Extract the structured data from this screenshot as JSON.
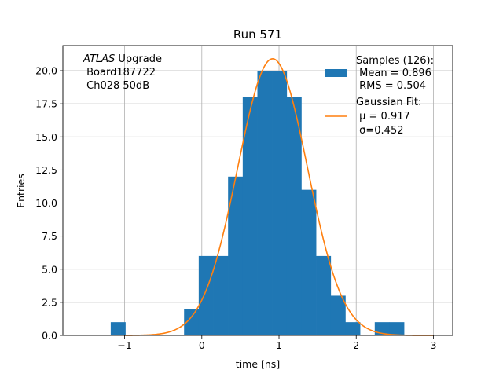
{
  "chart_data": {
    "type": "histogram",
    "title": "Run 571",
    "xlabel": "time [ns]",
    "ylabel": "Entries",
    "xlim": [
      -1.8,
      3.25
    ],
    "ylim": [
      0,
      21.9
    ],
    "grid": true,
    "x_ticks": [
      -1,
      0,
      1,
      2,
      3
    ],
    "x_tick_labels": [
      "−1",
      "0",
      "1",
      "2",
      "3"
    ],
    "y_ticks": [
      0,
      2.5,
      5,
      7.5,
      10,
      12.5,
      15,
      17.5,
      20
    ],
    "y_tick_labels": [
      "0.0",
      "2.5",
      "5.0",
      "7.5",
      "10.0",
      "12.5",
      "15.0",
      "17.5",
      "20.0"
    ],
    "bin_width": 0.19,
    "bins": [
      {
        "x0": -1.18,
        "value": 1
      },
      {
        "x0": -0.99,
        "value": 0
      },
      {
        "x0": -0.8,
        "value": 0
      },
      {
        "x0": -0.61,
        "value": 0
      },
      {
        "x0": -0.42,
        "value": 0
      },
      {
        "x0": -0.23,
        "value": 2
      },
      {
        "x0": -0.04,
        "value": 6
      },
      {
        "x0": 0.15,
        "value": 6
      },
      {
        "x0": 0.34,
        "value": 12
      },
      {
        "x0": 0.53,
        "value": 18
      },
      {
        "x0": 0.72,
        "value": 20
      },
      {
        "x0": 0.91,
        "value": 20
      },
      {
        "x0": 1.1,
        "value": 18
      },
      {
        "x0": 1.29,
        "value": 11
      },
      {
        "x0": 1.48,
        "value": 6
      },
      {
        "x0": 1.67,
        "value": 3
      },
      {
        "x0": 1.86,
        "value": 1
      },
      {
        "x0": 2.05,
        "value": 0
      },
      {
        "x0": 2.24,
        "value": 1
      },
      {
        "x0": 2.43,
        "value": 1
      }
    ],
    "fit": {
      "amplitude": 20.9,
      "mu": 0.917,
      "sigma": 0.452,
      "x_range": [
        -1.0,
        3.0
      ]
    },
    "colors": {
      "bar": "#1f77b4",
      "fit": "#ff7f0e",
      "grid": "#b0b0b0"
    },
    "legend_position": "upper right",
    "legend": [
      {
        "kind": "bar",
        "lines": [
          "Samples (126):",
          " Mean = 0.896",
          " RMS = 0.504"
        ]
      },
      {
        "kind": "line",
        "lines": [
          "Gaussian Fit:",
          " μ = 0.917",
          " σ=0.452"
        ]
      }
    ],
    "annotation": {
      "italic_prefix": "ATLAS",
      "line1_rest": " Upgrade",
      "line2": " Board187722",
      "line3": " Ch028 50dB"
    }
  }
}
